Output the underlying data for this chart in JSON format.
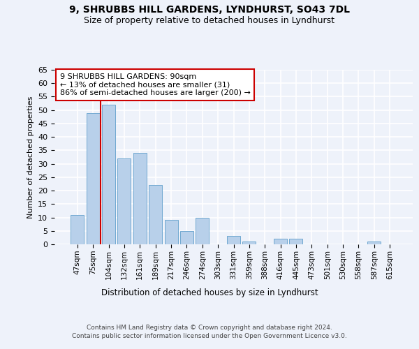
{
  "title1": "9, SHRUBBS HILL GARDENS, LYNDHURST, SO43 7DL",
  "title2": "Size of property relative to detached houses in Lyndhurst",
  "xlabel": "Distribution of detached houses by size in Lyndhurst",
  "ylabel": "Number of detached properties",
  "categories": [
    "47sqm",
    "75sqm",
    "104sqm",
    "132sqm",
    "161sqm",
    "189sqm",
    "217sqm",
    "246sqm",
    "274sqm",
    "303sqm",
    "331sqm",
    "359sqm",
    "388sqm",
    "416sqm",
    "445sqm",
    "473sqm",
    "501sqm",
    "530sqm",
    "558sqm",
    "587sqm",
    "615sqm"
  ],
  "values": [
    11,
    49,
    52,
    32,
    34,
    22,
    9,
    5,
    10,
    0,
    3,
    1,
    0,
    2,
    2,
    0,
    0,
    0,
    0,
    1,
    0
  ],
  "bar_color": "#b8d0ea",
  "bar_edge_color": "#6fa8d0",
  "red_line_x": 1.5,
  "annotation_text": "9 SHRUBBS HILL GARDENS: 90sqm\n← 13% of detached houses are smaller (31)\n86% of semi-detached houses are larger (200) →",
  "annotation_box_color": "#ffffff",
  "annotation_box_edge": "#cc0000",
  "footer1": "Contains HM Land Registry data © Crown copyright and database right 2024.",
  "footer2": "Contains public sector information licensed under the Open Government Licence v3.0.",
  "ylim": [
    0,
    65
  ],
  "yticks": [
    0,
    5,
    10,
    15,
    20,
    25,
    30,
    35,
    40,
    45,
    50,
    55,
    60,
    65
  ],
  "bg_color": "#eef2fa",
  "grid_color": "#ffffff",
  "title1_fontsize": 10,
  "title2_fontsize": 9,
  "bar_width": 0.85
}
